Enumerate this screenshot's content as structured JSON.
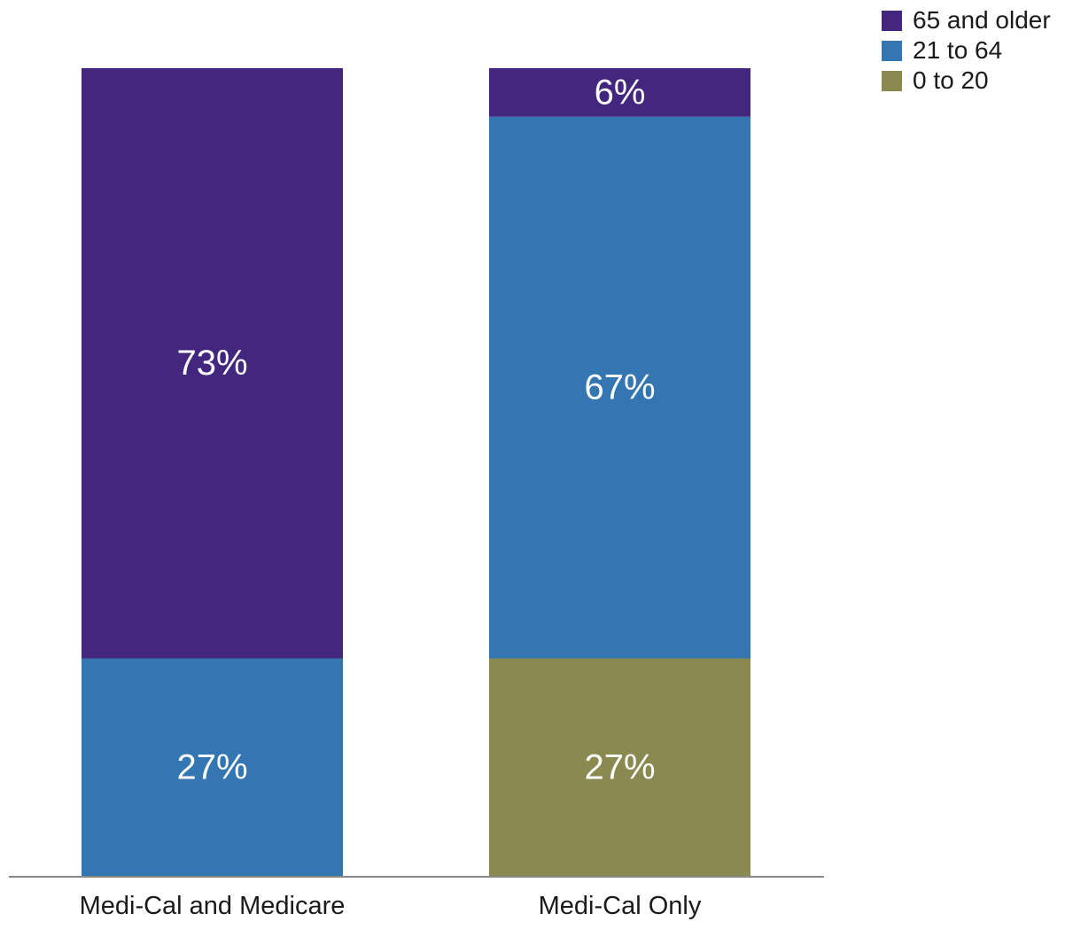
{
  "chart_data": {
    "type": "bar",
    "stacked": true,
    "title": "",
    "xlabel": "",
    "ylabel": "",
    "ylim": [
      0,
      100
    ],
    "unit": "%",
    "grid": false,
    "legend_position": "top-right",
    "categories": [
      "Medi-Cal and Medicare",
      "Medi-Cal Only"
    ],
    "series": [
      {
        "name": "0 to 20",
        "color": "#8a8950",
        "values": [
          0,
          27
        ]
      },
      {
        "name": "21 to 64",
        "color": "#3476b1",
        "values": [
          27,
          67
        ]
      },
      {
        "name": "65 and older",
        "color": "#43267e",
        "values": [
          73,
          6
        ]
      }
    ],
    "legend_order": [
      "65 and older",
      "21 to 64",
      "0 to 20"
    ]
  }
}
